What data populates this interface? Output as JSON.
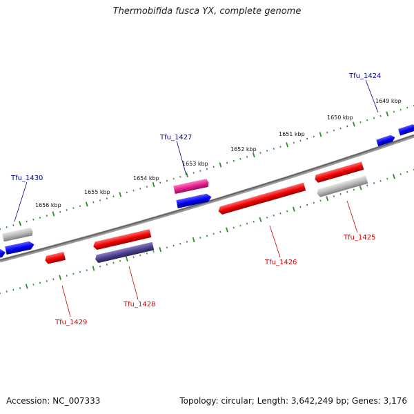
{
  "title": "Thermobifida fusca YX, complete genome",
  "footer": {
    "accession": "Accession: NC_007333",
    "summary": "Topology: circular; Length: 3,642,249 bp; Genes: 3,176"
  },
  "colors": {
    "backbone": "#777777",
    "tick": "#2e8b2e",
    "forward_label": "#00008b",
    "reverse_label": "#cc0000",
    "blue_gene": "#0000ee",
    "red_gene": "#ee0000",
    "grey_gene": "#b0b0b0",
    "magenta_gene": "#e0208a",
    "slate_gene": "#4a3f8a"
  },
  "kbp_labels": [
    "1649 kbp",
    "1650 kbp",
    "1651 kbp",
    "1652 kbp",
    "1653 kbp",
    "1654 kbp",
    "1655 kbp",
    "1656 kbp"
  ],
  "gene_labels_forward": [
    "Tfu_1424",
    "Tfu_1427",
    "Tfu_1430"
  ],
  "gene_labels_reverse": [
    "Tfu_1425",
    "Tfu_1426",
    "Tfu_1428",
    "Tfu_1429"
  ]
}
